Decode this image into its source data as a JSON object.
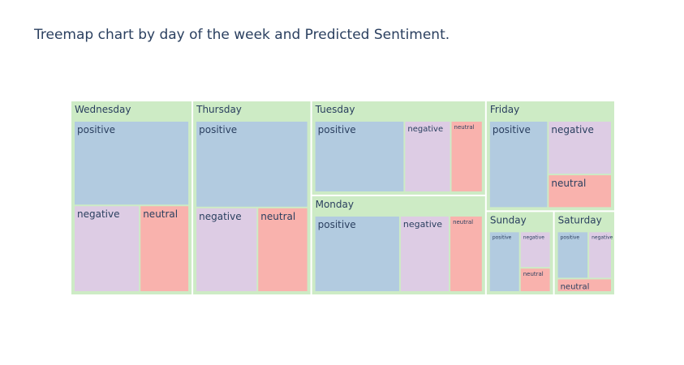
{
  "title": "Treemap chart by day of the week and Predicted Sentiment.",
  "colors": {
    "group": "#cdebc5",
    "positive": "#b2cbe0",
    "negative": "#ddcce4",
    "neutral": "#f9b2ad",
    "border": "#ffffff",
    "text": "#2a3f5f"
  },
  "chart_data": {
    "type": "treemap",
    "title": "Treemap chart by day of the week and Predicted Sentiment.",
    "groups": [
      {
        "name": "Wednesday",
        "children": [
          {
            "label": "positive",
            "value": 41
          },
          {
            "label": "negative",
            "value": 24
          },
          {
            "label": "neutral",
            "value": 18
          }
        ]
      },
      {
        "name": "Thursday",
        "children": [
          {
            "label": "positive",
            "value": 41
          },
          {
            "label": "negative",
            "value": 22
          },
          {
            "label": "neutral",
            "value": 18
          }
        ]
      },
      {
        "name": "Tuesday",
        "children": [
          {
            "label": "positive",
            "value": 31
          },
          {
            "label": "negative",
            "value": 16
          },
          {
            "label": "neutral",
            "value": 11
          }
        ]
      },
      {
        "name": "Monday",
        "children": [
          {
            "label": "positive",
            "value": 31
          },
          {
            "label": "negative",
            "value": 18
          },
          {
            "label": "neutral",
            "value": 12
          }
        ]
      },
      {
        "name": "Friday",
        "children": [
          {
            "label": "positive",
            "value": 24
          },
          {
            "label": "negative",
            "value": 16
          },
          {
            "label": "neutral",
            "value": 10
          }
        ]
      },
      {
        "name": "Sunday",
        "children": [
          {
            "label": "positive",
            "value": 10
          },
          {
            "label": "negative",
            "value": 6
          },
          {
            "label": "neutral",
            "value": 4
          }
        ]
      },
      {
        "name": "Saturday",
        "children": [
          {
            "label": "positive",
            "value": 8
          },
          {
            "label": "negative",
            "value": 6
          },
          {
            "label": "neutral",
            "value": 4
          }
        ]
      }
    ]
  }
}
